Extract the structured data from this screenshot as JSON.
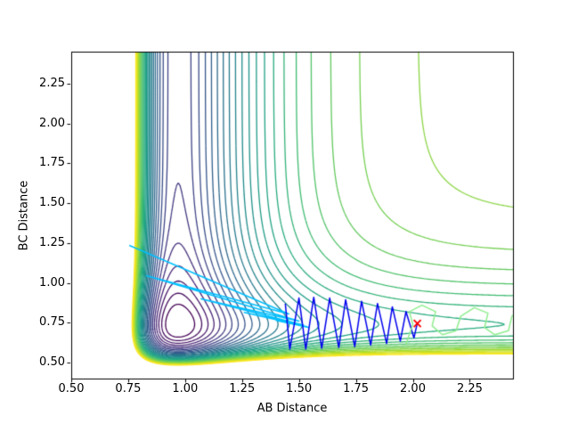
{
  "figure": {
    "background": "#ffffff"
  },
  "chart_data": {
    "type": "contour",
    "title": "",
    "xlabel": "AB Distance",
    "ylabel": "BC Distance",
    "xlim": [
      0.5,
      2.44
    ],
    "ylim": [
      0.4,
      2.45
    ],
    "grid": false,
    "legend": "none",
    "colormap": "viridis",
    "xticks": {
      "values": [
        0.5,
        0.75,
        1.0,
        1.25,
        1.5,
        1.75,
        2.0,
        2.25
      ],
      "labels": [
        "0.50",
        "0.75",
        "1.00",
        "1.25",
        "1.50",
        "1.75",
        "2.00",
        "2.25"
      ]
    },
    "yticks": {
      "values": [
        0.5,
        0.75,
        1.0,
        1.25,
        1.5,
        1.75,
        2.0,
        2.25
      ],
      "labels": [
        "0.50",
        "0.75",
        "1.00",
        "1.25",
        "1.50",
        "1.75",
        "2.00",
        "2.25"
      ]
    },
    "levels": {
      "min": 0.03,
      "max": 0.75,
      "count": 30
    },
    "surface": {
      "model": "morse_AB_plus_morse_BC",
      "AB": {
        "D": 0.48,
        "a": 4.0,
        "re": 0.97
      },
      "BC": {
        "D": 0.16,
        "a": 4.5,
        "re": 0.74
      }
    },
    "trajectories": [
      {
        "name": "optimizer-path-cyan",
        "color": "#00bfff",
        "points": [
          [
            0.755,
            1.235
          ],
          [
            1.455,
            0.805
          ],
          [
            0.83,
            1.045
          ],
          [
            1.5,
            0.76
          ],
          [
            1.07,
            0.9
          ],
          [
            1.52,
            0.735
          ],
          [
            1.26,
            0.815
          ],
          [
            1.535,
            0.725
          ],
          [
            1.4,
            0.765
          ],
          [
            1.545,
            0.72
          ]
        ]
      },
      {
        "name": "optimizer-path-blue",
        "color": "#0000ee",
        "points": [
          [
            1.44,
            0.87
          ],
          [
            1.46,
            0.585
          ],
          [
            1.5,
            0.905
          ],
          [
            1.53,
            0.585
          ],
          [
            1.565,
            0.91
          ],
          [
            1.6,
            0.59
          ],
          [
            1.635,
            0.905
          ],
          [
            1.675,
            0.595
          ],
          [
            1.705,
            0.895
          ],
          [
            1.745,
            0.6
          ],
          [
            1.775,
            0.885
          ],
          [
            1.815,
            0.61
          ],
          [
            1.845,
            0.87
          ],
          [
            1.885,
            0.62
          ],
          [
            1.91,
            0.85
          ],
          [
            1.945,
            0.635
          ],
          [
            1.97,
            0.82
          ],
          [
            2.005,
            0.655
          ],
          [
            2.02,
            0.75
          ]
        ]
      },
      {
        "name": "optimizer-path-green",
        "color": "#90ee90",
        "points": [
          [
            1.97,
            0.615
          ],
          [
            2.0,
            0.74
          ],
          [
            1.985,
            0.82
          ],
          [
            2.04,
            0.86
          ],
          [
            2.1,
            0.82
          ],
          [
            2.085,
            0.73
          ],
          [
            2.13,
            0.675
          ],
          [
            2.19,
            0.7
          ],
          [
            2.21,
            0.79
          ],
          [
            2.27,
            0.845
          ],
          [
            2.33,
            0.81
          ],
          [
            2.315,
            0.72
          ],
          [
            2.36,
            0.675
          ],
          [
            2.42,
            0.7
          ],
          [
            2.435,
            0.79
          ],
          [
            2.47,
            0.83
          ]
        ]
      }
    ],
    "end_marker": {
      "x": 2.02,
      "y": 0.745,
      "symbol": "x",
      "color": "#ff0000"
    }
  }
}
